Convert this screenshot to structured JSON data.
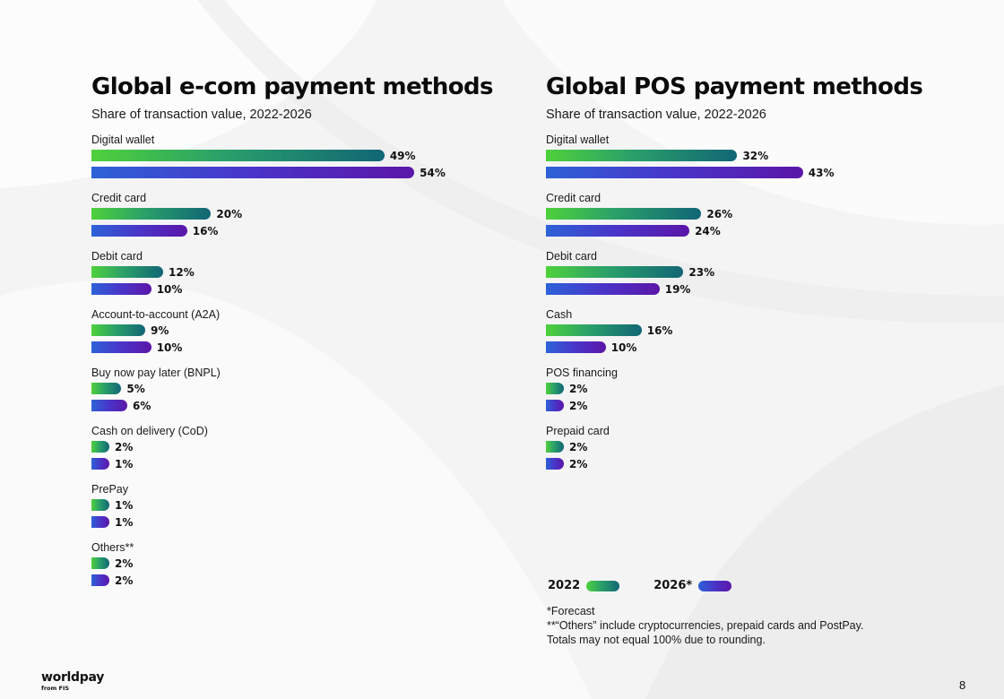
{
  "legend": {
    "series_2022": "2022",
    "series_2026": "2026*"
  },
  "chart_data": [
    {
      "type": "bar",
      "orientation": "horizontal",
      "title": "Global e-com payment methods",
      "subtitle": "Share of transaction value, 2022-2026",
      "categories": [
        "Digital wallet",
        "Credit card",
        "Debit card",
        "Account-to-account (A2A)",
        "Buy now pay later (BNPL)",
        "Cash on delivery (CoD)",
        "PrePay",
        "Others**"
      ],
      "series": [
        {
          "name": "2022",
          "values": [
            49,
            20,
            12,
            9,
            5,
            2,
            1,
            2
          ],
          "labels": [
            "49%",
            "20%",
            "12%",
            "9%",
            "5%",
            "2%",
            "1%",
            "2%"
          ]
        },
        {
          "name": "2026*",
          "values": [
            54,
            16,
            10,
            10,
            6,
            1,
            1,
            2
          ],
          "labels": [
            "54%",
            "16%",
            "10%",
            "10%",
            "6%",
            "1%",
            "1%",
            "2%"
          ]
        }
      ],
      "unit": "%",
      "grid": false
    },
    {
      "type": "bar",
      "orientation": "horizontal",
      "title": "Global POS payment methods",
      "subtitle": "Share of transaction value, 2022-2026",
      "categories": [
        "Digital wallet",
        "Credit card",
        "Debit card",
        "Cash",
        "POS financing",
        "Prepaid card"
      ],
      "series": [
        {
          "name": "2022",
          "values": [
            32,
            26,
            23,
            16,
            2,
            2
          ],
          "labels": [
            "32%",
            "26%",
            "23%",
            "16%",
            "2%",
            "2%"
          ]
        },
        {
          "name": "2026*",
          "values": [
            43,
            24,
            19,
            10,
            2,
            2
          ],
          "labels": [
            "43%",
            "24%",
            "19%",
            "10%",
            "2%",
            "2%"
          ]
        }
      ],
      "unit": "%",
      "grid": false
    }
  ],
  "notes": [
    "*Forecast",
    "**“Others” include cryptocurrencies, prepaid cards and PostPay.",
    "Totals may not equal 100% due to rounding."
  ],
  "brand": {
    "name": "worldpay",
    "sub": "from FIS"
  },
  "page_number": "8",
  "colors": {
    "series_2022_start": "#4fd13b",
    "series_2022_end": "#116675",
    "series_2026_start": "#2d62d8",
    "series_2026_end": "#5b16a8",
    "background": "#f4f4f5"
  }
}
